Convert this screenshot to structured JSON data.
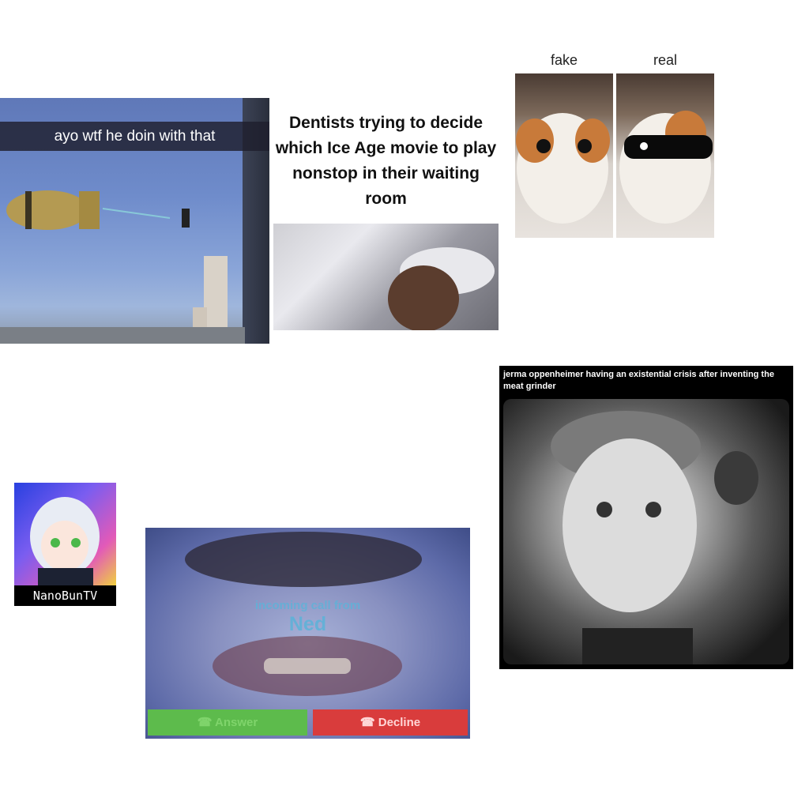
{
  "meme_bomb": {
    "caption": "ayo wtf he doin with that"
  },
  "meme_dentists": {
    "caption": "Dentists trying to decide which Ice Age movie to play nonstop in their waiting room"
  },
  "meme_cats": {
    "left_label": "fake",
    "right_label": "real"
  },
  "avatar": {
    "name": "NanoBunTV"
  },
  "meme_call": {
    "incoming": "incoming call from",
    "caller": "Ned",
    "answer": "Answer",
    "decline": "Decline"
  },
  "meme_jerma": {
    "caption": "jerma oppenheimer having an existential crisis after inventing the meat grinder"
  }
}
